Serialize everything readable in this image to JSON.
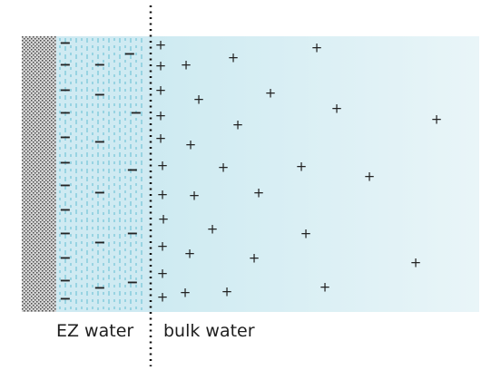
{
  "labels": {
    "ez": "EZ water",
    "bulk": "bulk water"
  },
  "symbols": {
    "positive": "+",
    "negative": "−"
  },
  "colors": {
    "surface_dark": "#4a4a4a",
    "surface_light": "#d6d6d6",
    "ez_fill": "#cfeaf2",
    "ez_stripe": "#2aa6c4",
    "bulk_fill_left": "#cdeaf1",
    "bulk_fill_right": "#e9f5f8",
    "boundary": "#111111",
    "ion": "#222222"
  }
}
